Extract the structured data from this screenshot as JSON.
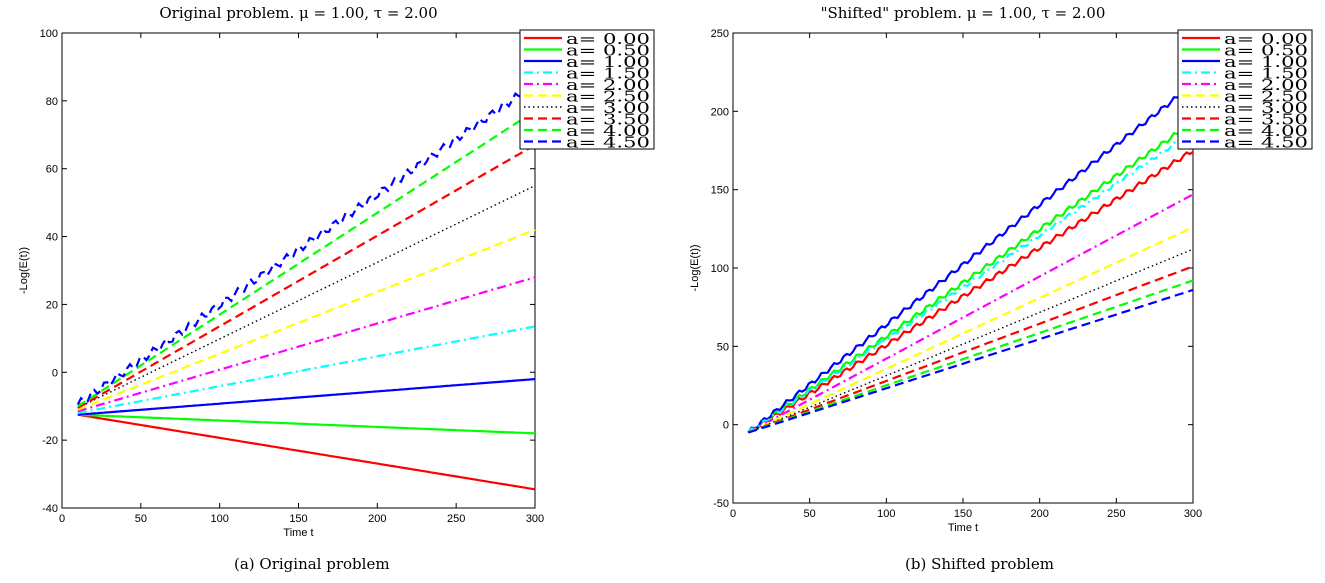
{
  "captions": {
    "a": "(a)  Original problem",
    "b": "(b)  Shifted problem"
  },
  "chart_data": [
    {
      "type": "line",
      "title": "Original problem. μ = 1.00, τ = 2.00",
      "xlabel": "Time t",
      "ylabel": "-Log(E(t))",
      "xlim": [
        0,
        300
      ],
      "ylim": [
        -40,
        100
      ],
      "xticks": [
        0,
        50,
        100,
        150,
        200,
        250,
        300
      ],
      "yticks": [
        -40,
        -20,
        0,
        20,
        40,
        60,
        80,
        100
      ],
      "grid": false,
      "legend_position": "top-right (outside)",
      "x": [
        10,
        300
      ],
      "series": [
        {
          "name": "a= 0.00",
          "values": [
            -12.5,
            -34.5
          ],
          "color": "#ff0000",
          "style": "solid",
          "wiggle": 0
        },
        {
          "name": "a= 0.50",
          "values": [
            -12.5,
            -18
          ],
          "color": "#00ff00",
          "style": "solid",
          "wiggle": 0
        },
        {
          "name": "a= 1.00",
          "values": [
            -12.5,
            -2
          ],
          "color": "#0000ff",
          "style": "solid",
          "wiggle": 0
        },
        {
          "name": "a= 1.50",
          "values": [
            -12,
            13.5
          ],
          "color": "#00ffff",
          "style": "dashdot",
          "wiggle": 0
        },
        {
          "name": "a= 2.00",
          "values": [
            -11.5,
            28
          ],
          "color": "#ff00ff",
          "style": "dashdot",
          "wiggle": 0
        },
        {
          "name": "a= 2.50",
          "values": [
            -11,
            42
          ],
          "color": "#ffff00",
          "style": "dashed",
          "wiggle": 0
        },
        {
          "name": "a= 3.00",
          "values": [
            -10.5,
            55
          ],
          "color": "#000000",
          "style": "dotted",
          "wiggle": 0
        },
        {
          "name": "a= 3.50",
          "values": [
            -10.5,
            67
          ],
          "color": "#ff0000",
          "style": "dashed",
          "wiggle": 0
        },
        {
          "name": "a= 4.00",
          "values": [
            -10,
            77
          ],
          "color": "#00ff00",
          "style": "dashed",
          "wiggle": 0
        },
        {
          "name": "a= 4.50",
          "values": [
            -9.5,
            85
          ],
          "color": "#0000ff",
          "style": "dashed",
          "wiggle": 1.2
        }
      ]
    },
    {
      "type": "line",
      "title": "\"Shifted\" problem. μ = 1.00, τ = 2.00",
      "xlabel": "Time t",
      "ylabel": "-Log(E(t))",
      "xlim": [
        0,
        300
      ],
      "ylim": [
        -50,
        250
      ],
      "xticks": [
        0,
        50,
        100,
        150,
        200,
        250,
        300
      ],
      "yticks": [
        -50,
        0,
        50,
        100,
        150,
        200,
        250
      ],
      "grid": false,
      "legend_position": "top-right (outside)",
      "x": [
        10,
        300
      ],
      "series": [
        {
          "name": "a= 0.00",
          "values": [
            -5,
            175
          ],
          "color": "#ff0000",
          "style": "solid",
          "wiggle": 1.5
        },
        {
          "name": "a= 0.50",
          "values": [
            -5,
            193
          ],
          "color": "#00ff00",
          "style": "solid",
          "wiggle": 1.5
        },
        {
          "name": "a= 1.00",
          "values": [
            -5,
            217
          ],
          "color": "#0000ff",
          "style": "solid",
          "wiggle": 1.5
        },
        {
          "name": "a= 1.50",
          "values": [
            -5,
            187
          ],
          "color": "#00ffff",
          "style": "dashdot",
          "wiggle": 1.2
        },
        {
          "name": "a= 2.00",
          "values": [
            -5,
            147
          ],
          "color": "#ff00ff",
          "style": "dashdot",
          "wiggle": 0
        },
        {
          "name": "a= 2.50",
          "values": [
            -5,
            126
          ],
          "color": "#ffff00",
          "style": "dashed",
          "wiggle": 0
        },
        {
          "name": "a= 3.00",
          "values": [
            -5,
            112
          ],
          "color": "#000000",
          "style": "dotted",
          "wiggle": 0
        },
        {
          "name": "a= 3.50",
          "values": [
            -5,
            101
          ],
          "color": "#ff0000",
          "style": "dashed",
          "wiggle": 0
        },
        {
          "name": "a= 4.00",
          "values": [
            -5,
            92
          ],
          "color": "#00ff00",
          "style": "dashed",
          "wiggle": 0
        },
        {
          "name": "a= 4.50",
          "values": [
            -5,
            86
          ],
          "color": "#0000ff",
          "style": "dashed",
          "wiggle": 0
        }
      ]
    }
  ]
}
